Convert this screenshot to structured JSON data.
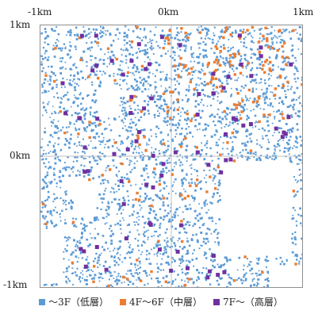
{
  "axes": {
    "top": [
      "-1km",
      "0km",
      "1km"
    ],
    "left": [
      "1km",
      "0km",
      "-1km"
    ]
  },
  "legend": [
    {
      "label": "～3F（低層）",
      "color": "#5b9bd5"
    },
    {
      "label": "4F～6F（中層）",
      "color": "#ed7d31"
    },
    {
      "label": "7F～（高層）",
      "color": "#7030a0"
    }
  ],
  "colors": {
    "low": "#5b9bd5",
    "mid": "#ed7d31",
    "high": "#7030a0",
    "crosshair": "#bfbfbf"
  },
  "map_extent_km": {
    "x": [
      -1,
      1
    ],
    "y": [
      -1,
      1
    ]
  }
}
